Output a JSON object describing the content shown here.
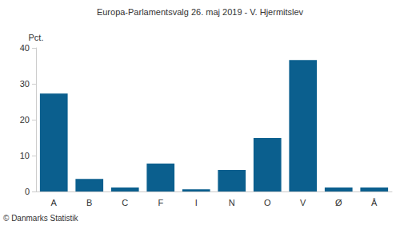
{
  "chart_data": {
    "type": "bar",
    "title": "Europa-Parlamentsvalg 26. maj 2019 - V. Hjermitslev",
    "ylabel": "Pct.",
    "annotation": "© Danmarks Statistik",
    "categories": [
      "A",
      "B",
      "C",
      "F",
      "I",
      "N",
      "O",
      "V",
      "Ø",
      "Å"
    ],
    "values": [
      27.3,
      3.5,
      1.1,
      7.8,
      0.6,
      6.0,
      14.9,
      36.6,
      1.1,
      1.1
    ],
    "color": "#0b5f8e",
    "ylim": [
      0,
      40
    ],
    "yticks": [
      0,
      10,
      20,
      30,
      40
    ],
    "grid": false
  }
}
